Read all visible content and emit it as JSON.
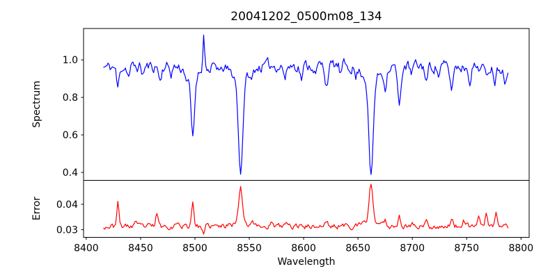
{
  "figure": {
    "title": "20041202_0500m08_134",
    "xlabel": "Wavelength",
    "background_color": "#ffffff",
    "grid": false,
    "legend": "none"
  },
  "chart_data": [
    {
      "type": "line",
      "name": "spectrum",
      "title": "20041202_0500m08_134",
      "ylabel": "Spectrum",
      "line_color": "#0000ff",
      "xlim": [
        8397.5,
        8807.5
      ],
      "ylim": [
        0.3575,
        1.1675
      ],
      "yticks": [
        0.4,
        0.6,
        0.8,
        1.0
      ],
      "ytick_decimals": 1,
      "sharex": true,
      "key_features": {
        "continuum_level": 0.96,
        "absorption_minima": [
          {
            "wavelength": 8429,
            "flux": 0.84
          },
          {
            "wavelength": 8468,
            "flux": 0.88
          },
          {
            "wavelength": 8498,
            "flux": 0.58
          },
          {
            "wavelength": 8542,
            "flux": 0.4
          },
          {
            "wavelength": 8621,
            "flux": 0.86
          },
          {
            "wavelength": 8662,
            "flux": 0.39
          },
          {
            "wavelength": 8688,
            "flux": 0.74
          },
          {
            "wavelength": 8736,
            "flux": 0.83
          }
        ],
        "emission_spike": {
          "wavelength": 8508,
          "flux": 1.14
        }
      },
      "model": {
        "x_start": 8416,
        "x_end": 8788,
        "x_step": 1,
        "continuum_base": 0.952,
        "continuum_bump": {
          "center": 8610,
          "amp": 0.018,
          "width": 160
        },
        "noise": {
          "amp": 0.025,
          "smooth": 0.55,
          "seed": 11
        },
        "absorption_lines": [
          [
            8429,
            0.115,
            1.1
          ],
          [
            8439,
            0.05,
            1.0
          ],
          [
            8452,
            0.04,
            1.0
          ],
          [
            8468,
            0.08,
            1.1
          ],
          [
            8478,
            0.04,
            1.0
          ],
          [
            8493,
            0.05,
            1.2
          ],
          [
            8498,
            0.33,
            1.6
          ],
          [
            8498,
            0.05,
            6.0
          ],
          [
            8514,
            0.05,
            1.0
          ],
          [
            8523,
            0.04,
            1.0
          ],
          [
            8542,
            0.5,
            2.0
          ],
          [
            8542,
            0.07,
            8.0
          ],
          [
            8552,
            0.05,
            1.2
          ],
          [
            8583,
            0.07,
            1.2
          ],
          [
            8598,
            0.07,
            1.2
          ],
          [
            8611,
            0.05,
            1.0
          ],
          [
            8621,
            0.1,
            1.4
          ],
          [
            8634,
            0.05,
            1.0
          ],
          [
            8648,
            0.05,
            1.0
          ],
          [
            8662,
            0.52,
            2.0
          ],
          [
            8662,
            0.07,
            8.0
          ],
          [
            8675,
            0.1,
            1.2
          ],
          [
            8688,
            0.215,
            1.5
          ],
          [
            8699,
            0.05,
            1.0
          ],
          [
            8713,
            0.08,
            1.2
          ],
          [
            8724,
            0.05,
            1.0
          ],
          [
            8736,
            0.12,
            1.4
          ],
          [
            8753,
            0.07,
            1.2
          ],
          [
            8768,
            0.06,
            1.1
          ],
          [
            8776,
            0.07,
            1.1
          ],
          [
            8785,
            0.07,
            1.1
          ]
        ],
        "emission_lines": [
          [
            8508,
            0.185,
            0.8
          ]
        ]
      }
    },
    {
      "type": "line",
      "name": "error",
      "ylabel": "Error",
      "line_color": "#ff0000",
      "xlim": [
        8397.5,
        8807.5
      ],
      "ylim": [
        0.02695,
        0.04945
      ],
      "yticks": [
        0.03,
        0.04
      ],
      "ytick_decimals": 2,
      "xticks": [
        8400,
        8450,
        8500,
        8550,
        8600,
        8650,
        8700,
        8750,
        8800
      ],
      "key_features": {
        "baseline": 0.0315,
        "peaks": [
          {
            "wavelength": 8429,
            "error": 0.041
          },
          {
            "wavelength": 8465,
            "error": 0.038
          },
          {
            "wavelength": 8498,
            "error": 0.042
          },
          {
            "wavelength": 8542,
            "error": 0.047
          },
          {
            "wavelength": 8662,
            "error": 0.048
          },
          {
            "wavelength": 8688,
            "error": 0.037
          },
          {
            "wavelength": 8767,
            "error": 0.038
          }
        ],
        "dip": {
          "wavelength": 8508,
          "error": 0.0285
        }
      },
      "model": {
        "x_start": 8416,
        "x_end": 8788,
        "x_step": 1,
        "baseline": 0.0313,
        "noise": {
          "amp": 0.0009,
          "smooth": 0.5,
          "seed": 23
        },
        "peaks": [
          [
            8429,
            0.0095,
            1.0
          ],
          [
            8445,
            0.002,
            1.0
          ],
          [
            8465,
            0.0055,
            1.0
          ],
          [
            8484,
            0.002,
            1.0
          ],
          [
            8498,
            0.01,
            1.1
          ],
          [
            8508,
            -0.0035,
            1.0
          ],
          [
            8532,
            0.0015,
            1.2
          ],
          [
            8542,
            0.014,
            1.6
          ],
          [
            8542,
            0.002,
            6.0
          ],
          [
            8553,
            0.002,
            1.2
          ],
          [
            8570,
            0.0015,
            1.0
          ],
          [
            8584,
            0.0015,
            1.0
          ],
          [
            8598,
            0.0015,
            1.0
          ],
          [
            8621,
            0.002,
            1.2
          ],
          [
            8640,
            0.0015,
            1.0
          ],
          [
            8662,
            0.015,
            1.6
          ],
          [
            8662,
            0.0022,
            6.0
          ],
          [
            8675,
            0.0025,
            1.0
          ],
          [
            8688,
            0.005,
            1.1
          ],
          [
            8700,
            0.0015,
            1.0
          ],
          [
            8713,
            0.002,
            1.0
          ],
          [
            8736,
            0.0028,
            1.1
          ],
          [
            8747,
            0.002,
            1.0
          ],
          [
            8761,
            0.0048,
            1.0
          ],
          [
            8768,
            0.0058,
            1.0
          ],
          [
            8777,
            0.005,
            1.0
          ]
        ]
      }
    }
  ]
}
